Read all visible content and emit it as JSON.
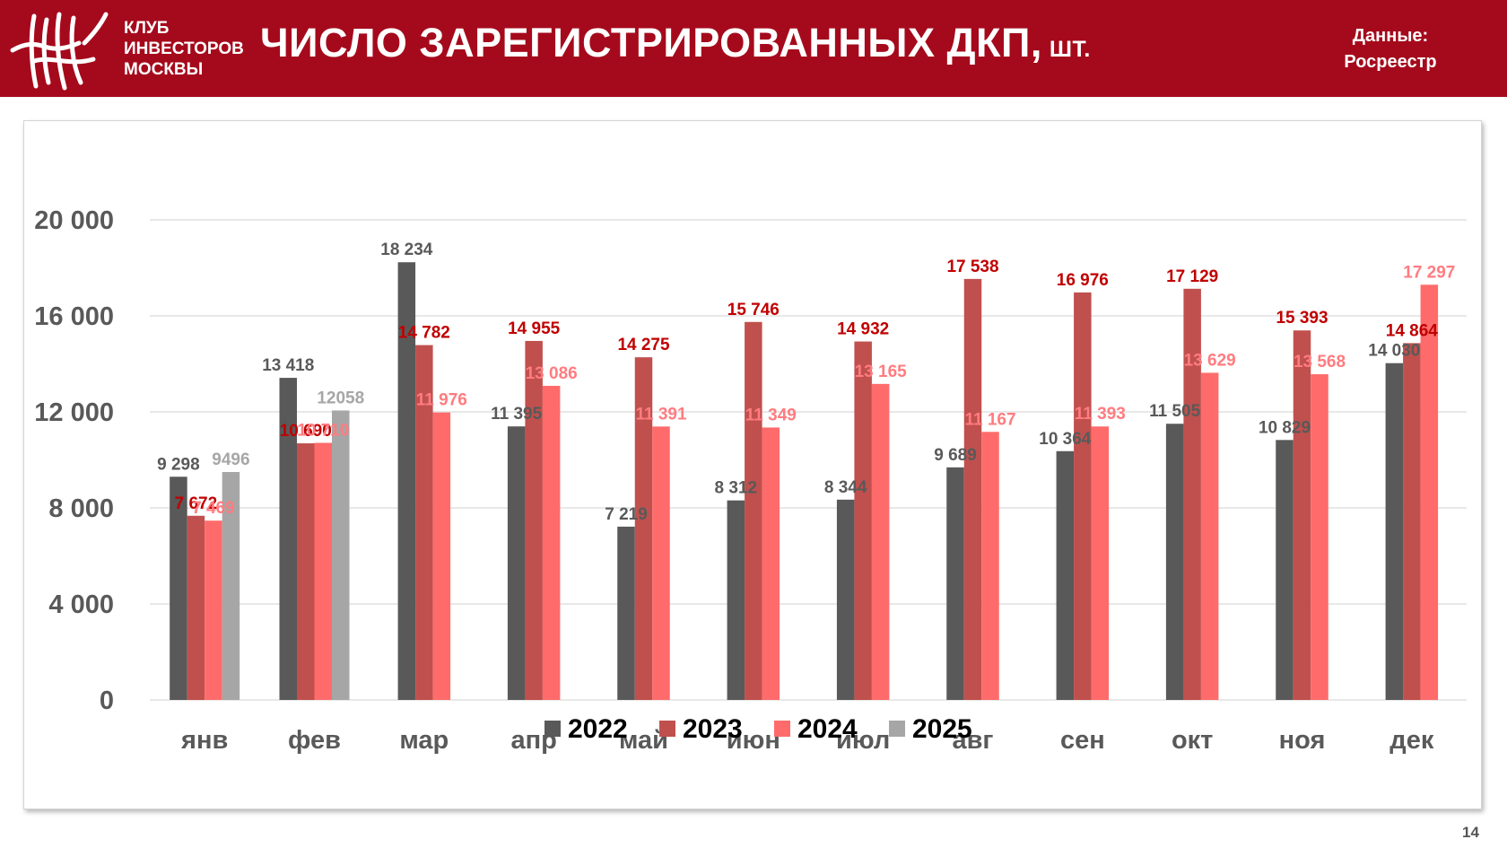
{
  "header": {
    "club_name": [
      "КЛУБ",
      "ИНВЕСТОРОВ",
      "МОСКВЫ"
    ],
    "title": "ЧИСЛО ЗАРЕГИСТРИРОВАННЫХ ДКП,",
    "title_unit": "ШТ.",
    "source_line1": "Данные:",
    "source_line2": "Росреестр",
    "logo_icon": "club-monogram-logo"
  },
  "page_number": "14",
  "colors": {
    "header_bg": "#a50a1c",
    "grid": "#d9d9d9",
    "axis_text": "#595959"
  },
  "chart_data": {
    "type": "bar",
    "title": "ЧИСЛО ЗАРЕГИСТРИРОВАННЫХ ДКП, ШТ.",
    "categories": [
      "янв",
      "фев",
      "мар",
      "апр",
      "май",
      "июн",
      "июл",
      "авг",
      "сен",
      "окт",
      "ноя",
      "дек"
    ],
    "ylim": [
      0,
      20000
    ],
    "yticks": [
      0,
      4000,
      8000,
      12000,
      16000,
      20000
    ],
    "ytick_labels": [
      "0",
      "4 000",
      "8 000",
      "12 000",
      "16 000",
      "20 000"
    ],
    "grid": true,
    "legend_position": "bottom-center",
    "series": [
      {
        "name": "2022",
        "color": "#595959",
        "label_color": "#595959",
        "values": [
          9298,
          13418,
          18234,
          11395,
          7219,
          8312,
          8344,
          9689,
          10364,
          11505,
          10829,
          14030
        ],
        "labels": [
          "9 298",
          "13 418",
          "18 234",
          "11 395",
          "7 219",
          "8 312",
          "8 344",
          "9 689",
          "10 364",
          "11 505",
          "10 829",
          "14 030"
        ]
      },
      {
        "name": "2023",
        "color": "#c0504d",
        "label_color": "#c00000",
        "values": [
          7672,
          10690,
          14782,
          14955,
          14275,
          15746,
          14932,
          17538,
          16976,
          17129,
          15393,
          14864
        ],
        "labels": [
          "7 672",
          "10 690",
          "14 782",
          "14 955",
          "14 275",
          "15 746",
          "14 932",
          "17 538",
          "16 976",
          "17 129",
          "15 393",
          "14 864"
        ]
      },
      {
        "name": "2024",
        "color": "#ff6b6b",
        "label_color": "#ff7c80",
        "values": [
          7469,
          10710,
          11976,
          13086,
          11391,
          11349,
          13165,
          11167,
          11393,
          13629,
          13568,
          17297
        ],
        "labels": [
          "7 469",
          "10 710",
          "11 976",
          "13 086",
          "11 391",
          "11 349",
          "13 165",
          "11 167",
          "11 393",
          "13 629",
          "13 568",
          "17 297"
        ]
      },
      {
        "name": "2025",
        "color": "#a6a6a6",
        "label_color": "#a6a6a6",
        "values": [
          9496,
          12058,
          null,
          null,
          null,
          null,
          null,
          null,
          null,
          null,
          null,
          null
        ],
        "labels": [
          "9496",
          "12058",
          null,
          null,
          null,
          null,
          null,
          null,
          null,
          null,
          null,
          null
        ]
      }
    ]
  }
}
